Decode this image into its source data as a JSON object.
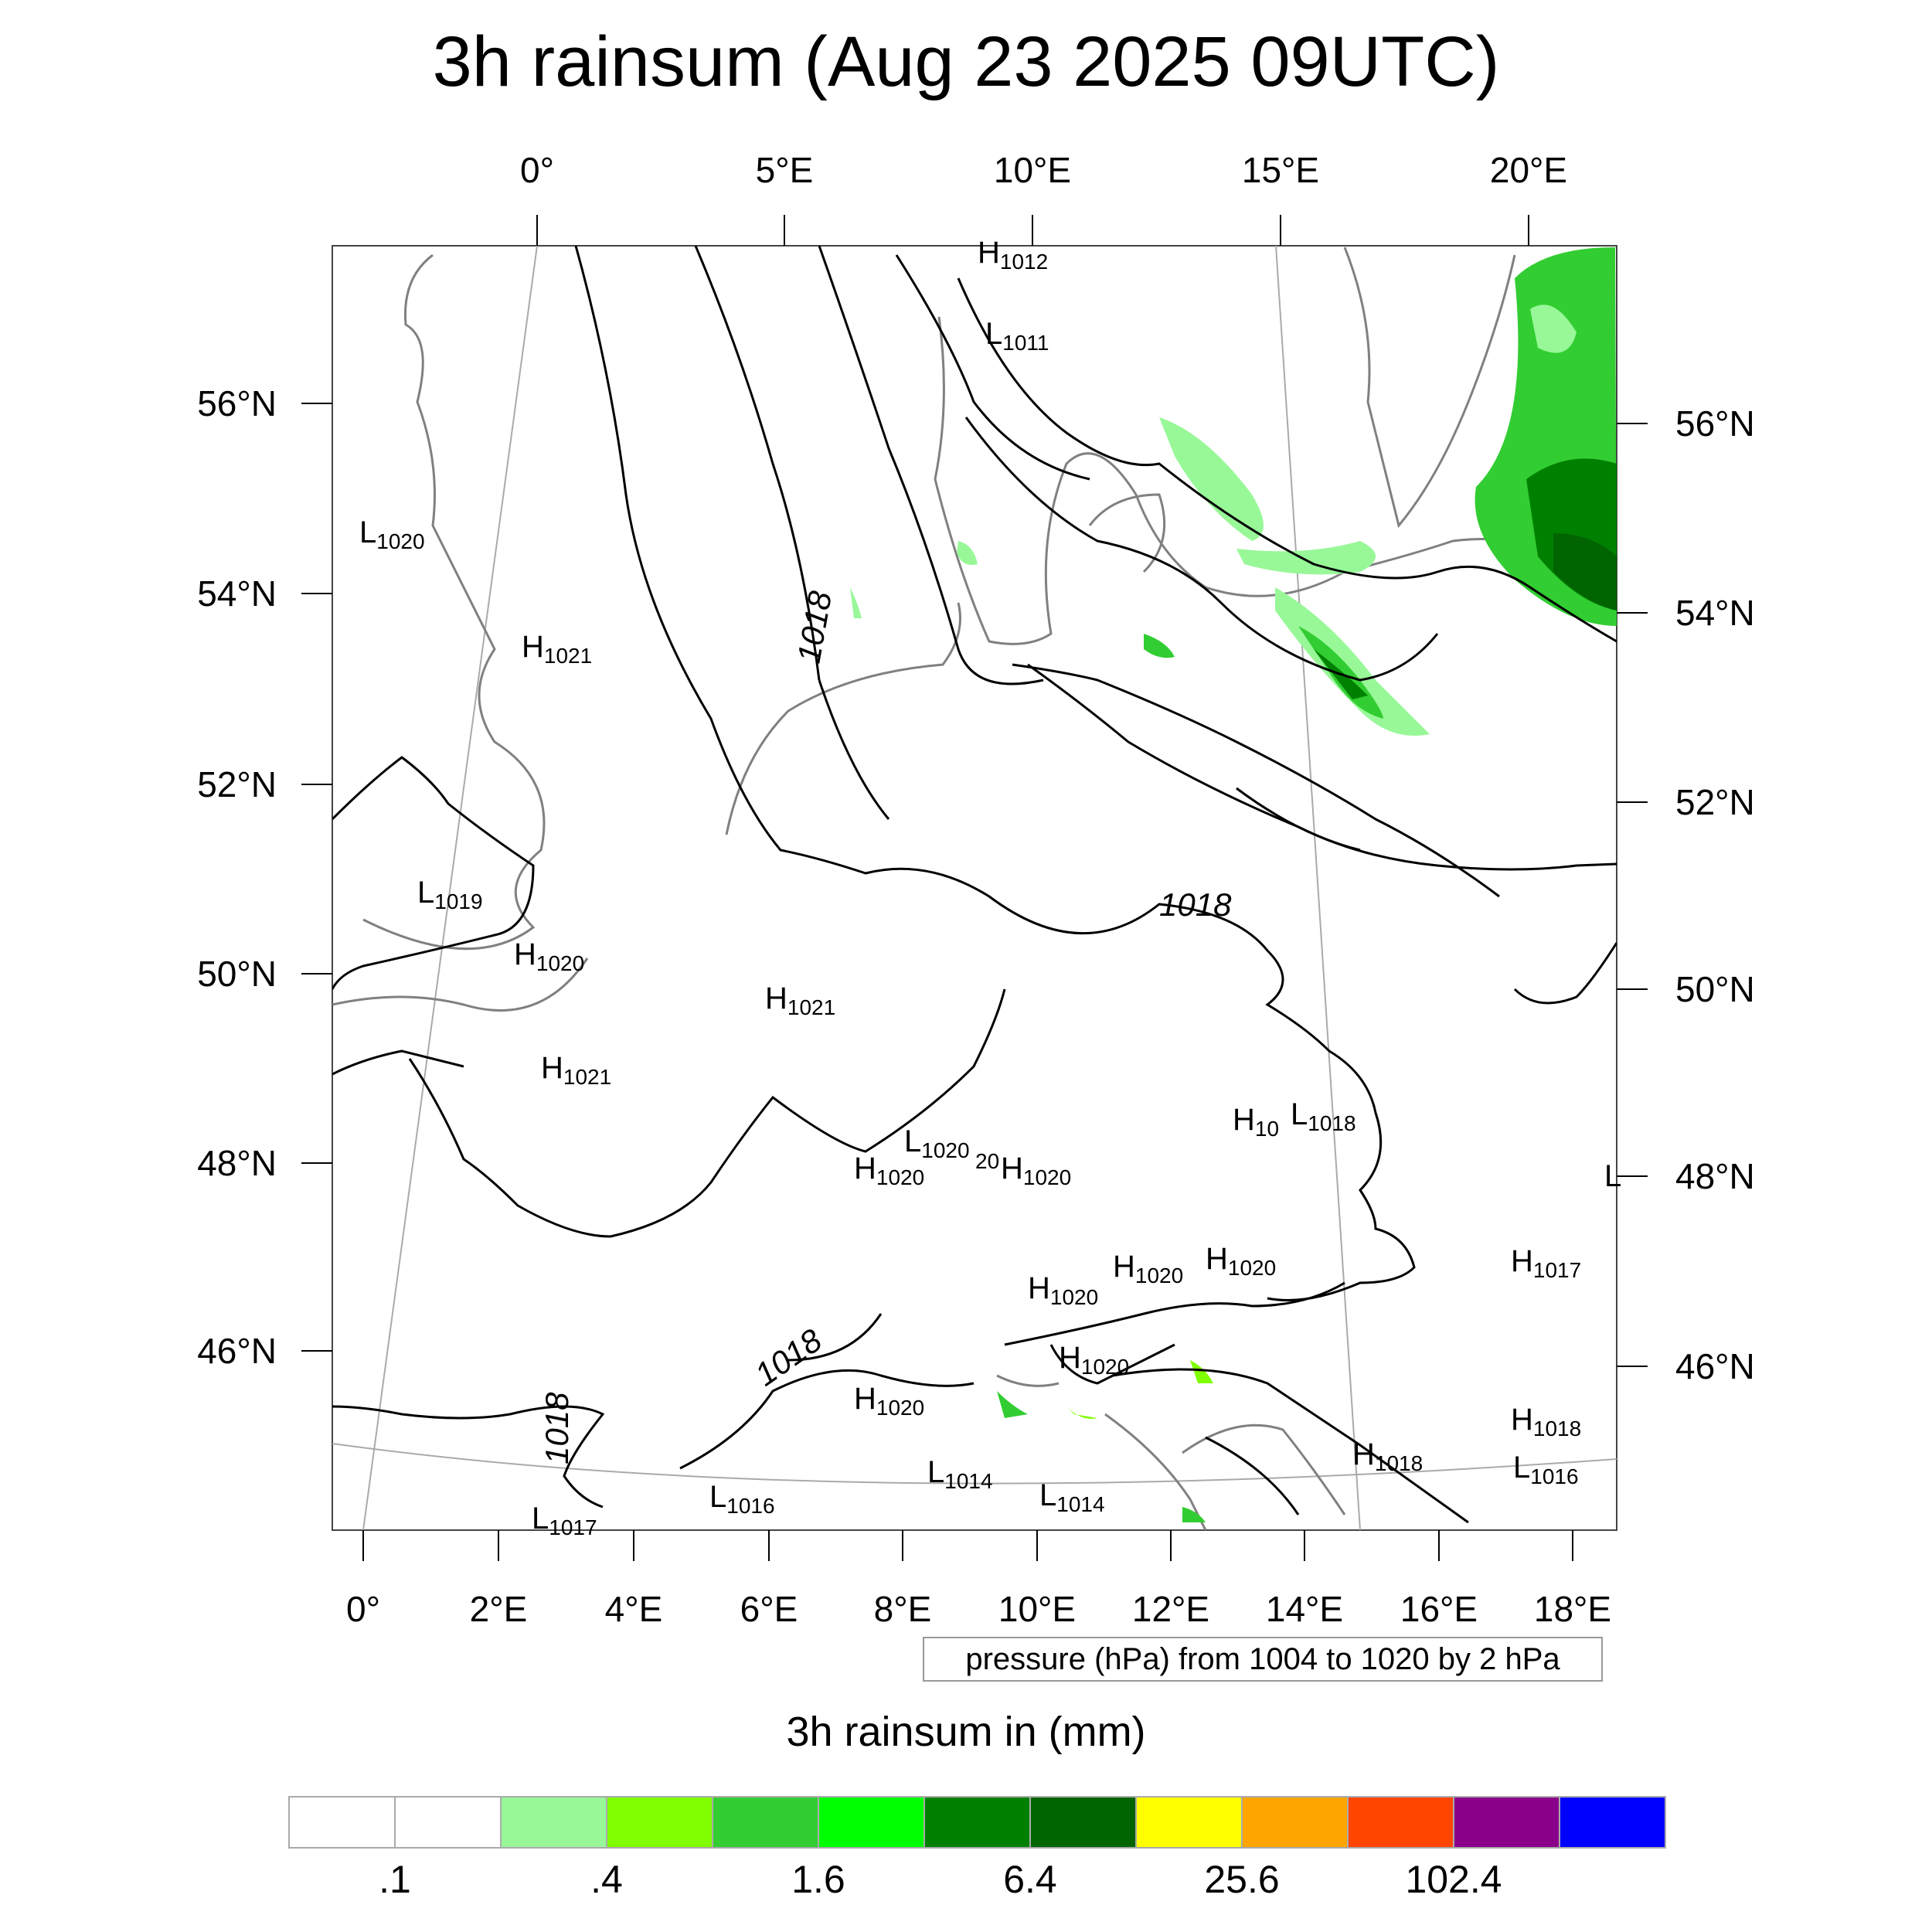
{
  "title": "3h rainsum (Aug 23 2025 09UTC)",
  "top_lon_labels": [
    "0°",
    "5°E",
    "10°E",
    "15°E",
    "20°E"
  ],
  "bottom_lon_labels": [
    "0°",
    "2°E",
    "4°E",
    "6°E",
    "8°E",
    "10°E",
    "12°E",
    "14°E",
    "16°E",
    "18°E"
  ],
  "left_lat_labels": [
    "56°N",
    "54°N",
    "52°N",
    "50°N",
    "48°N",
    "46°N"
  ],
  "right_lat_labels": [
    "56°N",
    "54°N",
    "52°N",
    "50°N",
    "48°N",
    "46°N"
  ],
  "contour_note": "pressure (hPa) from 1004 to 1020 by 2 hPa",
  "colorbar": {
    "title": "3h rainsum in (mm)",
    "colors": [
      "#ffffff",
      "#ffffff",
      "#98f898",
      "#80ff00",
      "#32cd32",
      "#00ff00",
      "#008000",
      "#006400",
      "#ffff00",
      "#ffa500",
      "#ff4500",
      "#8b008b",
      "#0000ff"
    ],
    "labels": [
      ".1",
      ".4",
      "1.6",
      "6.4",
      "25.6",
      "102.4"
    ]
  },
  "isobar_labels": [
    "1018",
    "1018",
    "1018",
    "1018"
  ],
  "pressure_centers": [
    {
      "type": "H",
      "value": "1012"
    },
    {
      "type": "L",
      "value": "1011"
    },
    {
      "type": "L",
      "value": "1020"
    },
    {
      "type": "H",
      "value": "1021"
    },
    {
      "type": "L",
      "value": "1019"
    },
    {
      "type": "H",
      "value": "1020"
    },
    {
      "type": "H",
      "value": "1021"
    },
    {
      "type": "H",
      "value": "1021"
    },
    {
      "type": "H",
      "value": "10"
    },
    {
      "type": "L",
      "value": "1018"
    },
    {
      "type": "L",
      "value": "1020"
    },
    {
      "type": "H",
      "value": "1020"
    },
    {
      "type": "",
      "value": "20"
    },
    {
      "type": "H",
      "value": "1020"
    },
    {
      "type": "H",
      "value": "1017"
    },
    {
      "type": "L",
      "value": ""
    },
    {
      "type": "H",
      "value": "1020"
    },
    {
      "type": "H",
      "value": "1020"
    },
    {
      "type": "H",
      "value": "1020"
    },
    {
      "type": "H",
      "value": "1020"
    },
    {
      "type": "H",
      "value": "1020"
    },
    {
      "type": "H",
      "value": "1018"
    },
    {
      "type": "H",
      "value": "1018"
    },
    {
      "type": "L",
      "value": "1016"
    },
    {
      "type": "L",
      "value": "1014"
    },
    {
      "type": "L",
      "value": "1014"
    },
    {
      "type": "L",
      "value": "1016"
    },
    {
      "type": "L",
      "value": "1017"
    }
  ]
}
